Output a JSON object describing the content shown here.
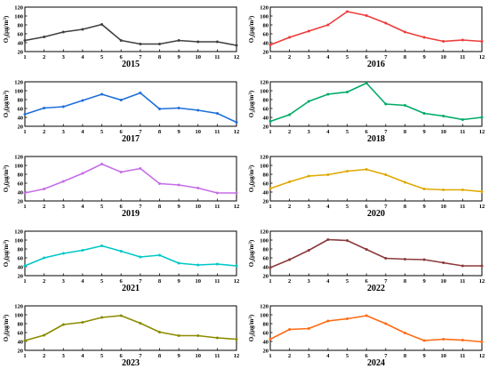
{
  "chart_data": [
    {
      "type": "line",
      "title": "2015",
      "ylabel_main": "O",
      "ylabel_sub": "3",
      "ylabel_unit": "(μg/m",
      "ylabel_sup": "3",
      "ylabel_end": ")",
      "x": [
        1,
        2,
        3,
        4,
        5,
        6,
        7,
        8,
        9,
        10,
        11,
        12
      ],
      "xlim": [
        1,
        12
      ],
      "ylim": [
        20,
        120
      ],
      "yticks": [
        20,
        40,
        60,
        80,
        100,
        120
      ],
      "series": [
        {
          "color": "#404040",
          "values": [
            45,
            53,
            64,
            70,
            81,
            45,
            37,
            37,
            45,
            42,
            42,
            34
          ]
        }
      ]
    },
    {
      "type": "line",
      "title": "2016",
      "ylabel_main": "O",
      "ylabel_sub": "3",
      "ylabel_unit": "(μg/m",
      "ylabel_sup": "3",
      "ylabel_end": ")",
      "x": [
        1,
        2,
        3,
        4,
        5,
        6,
        7,
        8,
        9,
        10,
        11,
        12
      ],
      "xlim": [
        1,
        12
      ],
      "ylim": [
        20,
        120
      ],
      "yticks": [
        20,
        40,
        60,
        80,
        100,
        120
      ],
      "series": [
        {
          "color": "#ee3b3b",
          "values": [
            35,
            52,
            66,
            80,
            110,
            101,
            84,
            64,
            52,
            43,
            46,
            43
          ]
        }
      ]
    },
    {
      "type": "line",
      "title": "2017",
      "ylabel_main": "O",
      "ylabel_sub": "3",
      "ylabel_unit": "(μg/m",
      "ylabel_sup": "3",
      "ylabel_end": ")",
      "x": [
        1,
        2,
        3,
        4,
        5,
        6,
        7,
        8,
        9,
        10,
        11,
        12
      ],
      "xlim": [
        1,
        12
      ],
      "ylim": [
        20,
        120
      ],
      "yticks": [
        20,
        40,
        60,
        80,
        100,
        120
      ],
      "series": [
        {
          "color": "#1e6fd9",
          "values": [
            47,
            61,
            64,
            78,
            92,
            79,
            95,
            59,
            61,
            56,
            49,
            29
          ]
        }
      ]
    },
    {
      "type": "line",
      "title": "2018",
      "ylabel_main": "O",
      "ylabel_sub": "3",
      "ylabel_unit": "(μg/m",
      "ylabel_sup": "3",
      "ylabel_end": ")",
      "x": [
        1,
        2,
        3,
        4,
        5,
        6,
        7,
        8,
        9,
        10,
        11,
        12
      ],
      "xlim": [
        1,
        12
      ],
      "ylim": [
        20,
        120
      ],
      "yticks": [
        20,
        40,
        60,
        80,
        100,
        120
      ],
      "series": [
        {
          "color": "#00aa66",
          "values": [
            31,
            46,
            76,
            92,
            97,
            117,
            70,
            67,
            49,
            43,
            35,
            40
          ]
        }
      ]
    },
    {
      "type": "line",
      "title": "2019",
      "ylabel_main": "O",
      "ylabel_sub": "3",
      "ylabel_unit": "(μg/m",
      "ylabel_sup": "3",
      "ylabel_end": ")",
      "x": [
        1,
        2,
        3,
        4,
        5,
        6,
        7,
        8,
        9,
        10,
        11,
        12
      ],
      "xlim": [
        1,
        12
      ],
      "ylim": [
        20,
        120
      ],
      "yticks": [
        20,
        40,
        60,
        80,
        100,
        120
      ],
      "series": [
        {
          "color": "#c56ee6",
          "values": [
            38,
            47,
            64,
            82,
            103,
            85,
            93,
            59,
            56,
            49,
            38,
            38
          ]
        }
      ]
    },
    {
      "type": "line",
      "title": "2020",
      "ylabel_main": "O",
      "ylabel_sub": "3",
      "ylabel_unit": "(μg/m",
      "ylabel_sup": "3",
      "ylabel_end": ")",
      "x": [
        1,
        2,
        3,
        4,
        5,
        6,
        7,
        8,
        9,
        10,
        11,
        12
      ],
      "xlim": [
        1,
        12
      ],
      "ylim": [
        20,
        120
      ],
      "yticks": [
        20,
        40,
        60,
        80,
        100,
        120
      ],
      "series": [
        {
          "color": "#e0a800",
          "values": [
            48,
            63,
            76,
            79,
            87,
            91,
            79,
            62,
            47,
            45,
            45,
            41
          ]
        }
      ]
    },
    {
      "type": "line",
      "title": "2021",
      "ylabel_main": "O",
      "ylabel_sub": "3",
      "ylabel_unit": "(μg/m",
      "ylabel_sup": "3",
      "ylabel_end": ")",
      "x": [
        1,
        2,
        3,
        4,
        5,
        6,
        7,
        8,
        9,
        10,
        11,
        12
      ],
      "xlim": [
        1,
        12
      ],
      "ylim": [
        20,
        120
      ],
      "yticks": [
        20,
        40,
        60,
        80,
        100,
        120
      ],
      "series": [
        {
          "color": "#00c7c7",
          "values": [
            42,
            60,
            70,
            77,
            87,
            75,
            62,
            66,
            48,
            44,
            46,
            42
          ]
        }
      ]
    },
    {
      "type": "line",
      "title": "2022",
      "ylabel_main": "O",
      "ylabel_sub": "3",
      "ylabel_unit": "(μg/m",
      "ylabel_sup": "3",
      "ylabel_end": ")",
      "x": [
        1,
        2,
        3,
        4,
        5,
        6,
        7,
        8,
        9,
        10,
        11,
        12
      ],
      "xlim": [
        1,
        12
      ],
      "ylim": [
        20,
        120
      ],
      "yticks": [
        20,
        40,
        60,
        80,
        100,
        120
      ],
      "series": [
        {
          "color": "#8b3a3a",
          "values": [
            38,
            56,
            77,
            101,
            99,
            79,
            59,
            57,
            56,
            49,
            42,
            42
          ]
        }
      ]
    },
    {
      "type": "line",
      "title": "2023",
      "ylabel_main": "O",
      "ylabel_sub": "3",
      "ylabel_unit": "(μg/m",
      "ylabel_sup": "3",
      "ylabel_end": ")",
      "x": [
        1,
        2,
        3,
        4,
        5,
        6,
        7,
        8,
        9,
        10,
        11,
        12
      ],
      "xlim": [
        1,
        12
      ],
      "ylim": [
        20,
        120
      ],
      "yticks": [
        20,
        40,
        60,
        80,
        100,
        120
      ],
      "series": [
        {
          "color": "#8b8b00",
          "values": [
            42,
            54,
            78,
            83,
            94,
            98,
            81,
            61,
            53,
            53,
            48,
            45
          ]
        }
      ]
    },
    {
      "type": "line",
      "title": "2024",
      "ylabel_main": "O",
      "ylabel_sub": "3",
      "ylabel_unit": "(μg/m",
      "ylabel_sup": "3",
      "ylabel_end": ")",
      "x": [
        1,
        2,
        3,
        4,
        5,
        6,
        7,
        8,
        9,
        10,
        11,
        12
      ],
      "xlim": [
        1,
        12
      ],
      "ylim": [
        20,
        120
      ],
      "yticks": [
        20,
        40,
        60,
        80,
        100,
        120
      ],
      "series": [
        {
          "color": "#ff6a13",
          "values": [
            45,
            67,
            69,
            86,
            91,
            98,
            80,
            59,
            42,
            45,
            43,
            39
          ]
        }
      ]
    }
  ]
}
